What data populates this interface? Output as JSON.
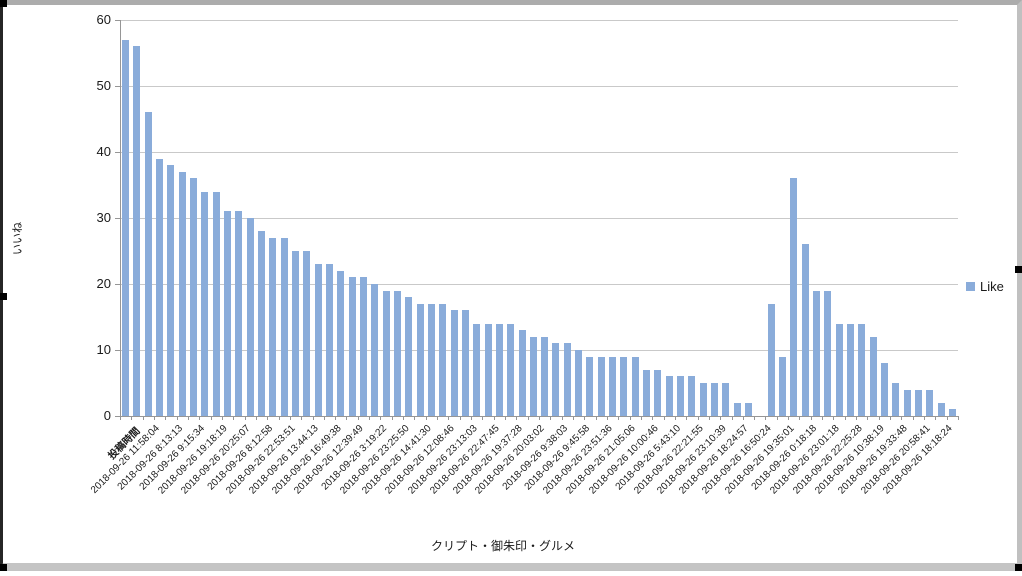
{
  "legend": {
    "label": "Like"
  },
  "chart_data": {
    "type": "bar",
    "title": "",
    "xlabel": "クリプト・御朱印・グルメ",
    "ylabel": "いいね",
    "ylim": [
      0,
      60
    ],
    "ytick_step": 10,
    "yticks": [
      0,
      10,
      20,
      30,
      40,
      50,
      60
    ],
    "grid": true,
    "legend": [
      "Like"
    ],
    "legend_position": "right",
    "bar_color": "#8aacda",
    "gridline_color": "#c9c9c9",
    "axis_color": "#969696",
    "label_interval": 2,
    "first_label_bold": true,
    "categories": [
      "投稿時間",
      "2018-09-26 11:58:04",
      "2018-09-26 8:13:13",
      "2018-09-26 9:15:34",
      "2018-09-26 19:18:19",
      "2018-09-26 20:25:07",
      "2018-09-26 8:12:58",
      "2018-09-26 22:53:51",
      "2018-09-26 13:44:13",
      "2018-09-26 16:49:38",
      "2018-09-26 12:39:49",
      "2018-09-26 3:19:22",
      "2018-09-26 23:25:50",
      "2018-09-26 14:41:30",
      "2018-09-26 12:08:46",
      "2018-09-26 23:13:03",
      "2018-09-26 22:47:45",
      "2018-09-26 19:37:28",
      "2018-09-26 20:03:02",
      "2018-09-26 9:38:03",
      "2018-09-26 9:45:58",
      "2018-09-26 23:51:36",
      "2018-09-26 21:05:06",
      "2018-09-26 10:00:46",
      "2018-09-26 5:43:10",
      "2018-09-26 22:21:55",
      "2018-09-26 23:10:39",
      "2018-09-26 18:24:57",
      "2018-09-26 16:50:24",
      "2018-09-26 19:35:01",
      "2018-09-26 0:18:18",
      "2018-09-26 23:01:18",
      "2018-09-26 22:25:28",
      "2018-09-26 10:38:19",
      "2018-09-26 19:33:48",
      "2018-09-26 20:58:41",
      "2018-09-26 18:18:24"
    ],
    "values": [
      57,
      56,
      46,
      39,
      38,
      37,
      36,
      34,
      34,
      31,
      31,
      30,
      28,
      27,
      27,
      25,
      25,
      23,
      23,
      22,
      21,
      21,
      20,
      19,
      19,
      18,
      17,
      17,
      17,
      16,
      16,
      14,
      14,
      14,
      14,
      13,
      12,
      12,
      11,
      11,
      10,
      9,
      9,
      9,
      9,
      9,
      7,
      7,
      6,
      6,
      6,
      5,
      5,
      5,
      2,
      2,
      0,
      17,
      9,
      36,
      26,
      19,
      19,
      14,
      14,
      14,
      12,
      8,
      5,
      4,
      4,
      4,
      2,
      1
    ]
  }
}
